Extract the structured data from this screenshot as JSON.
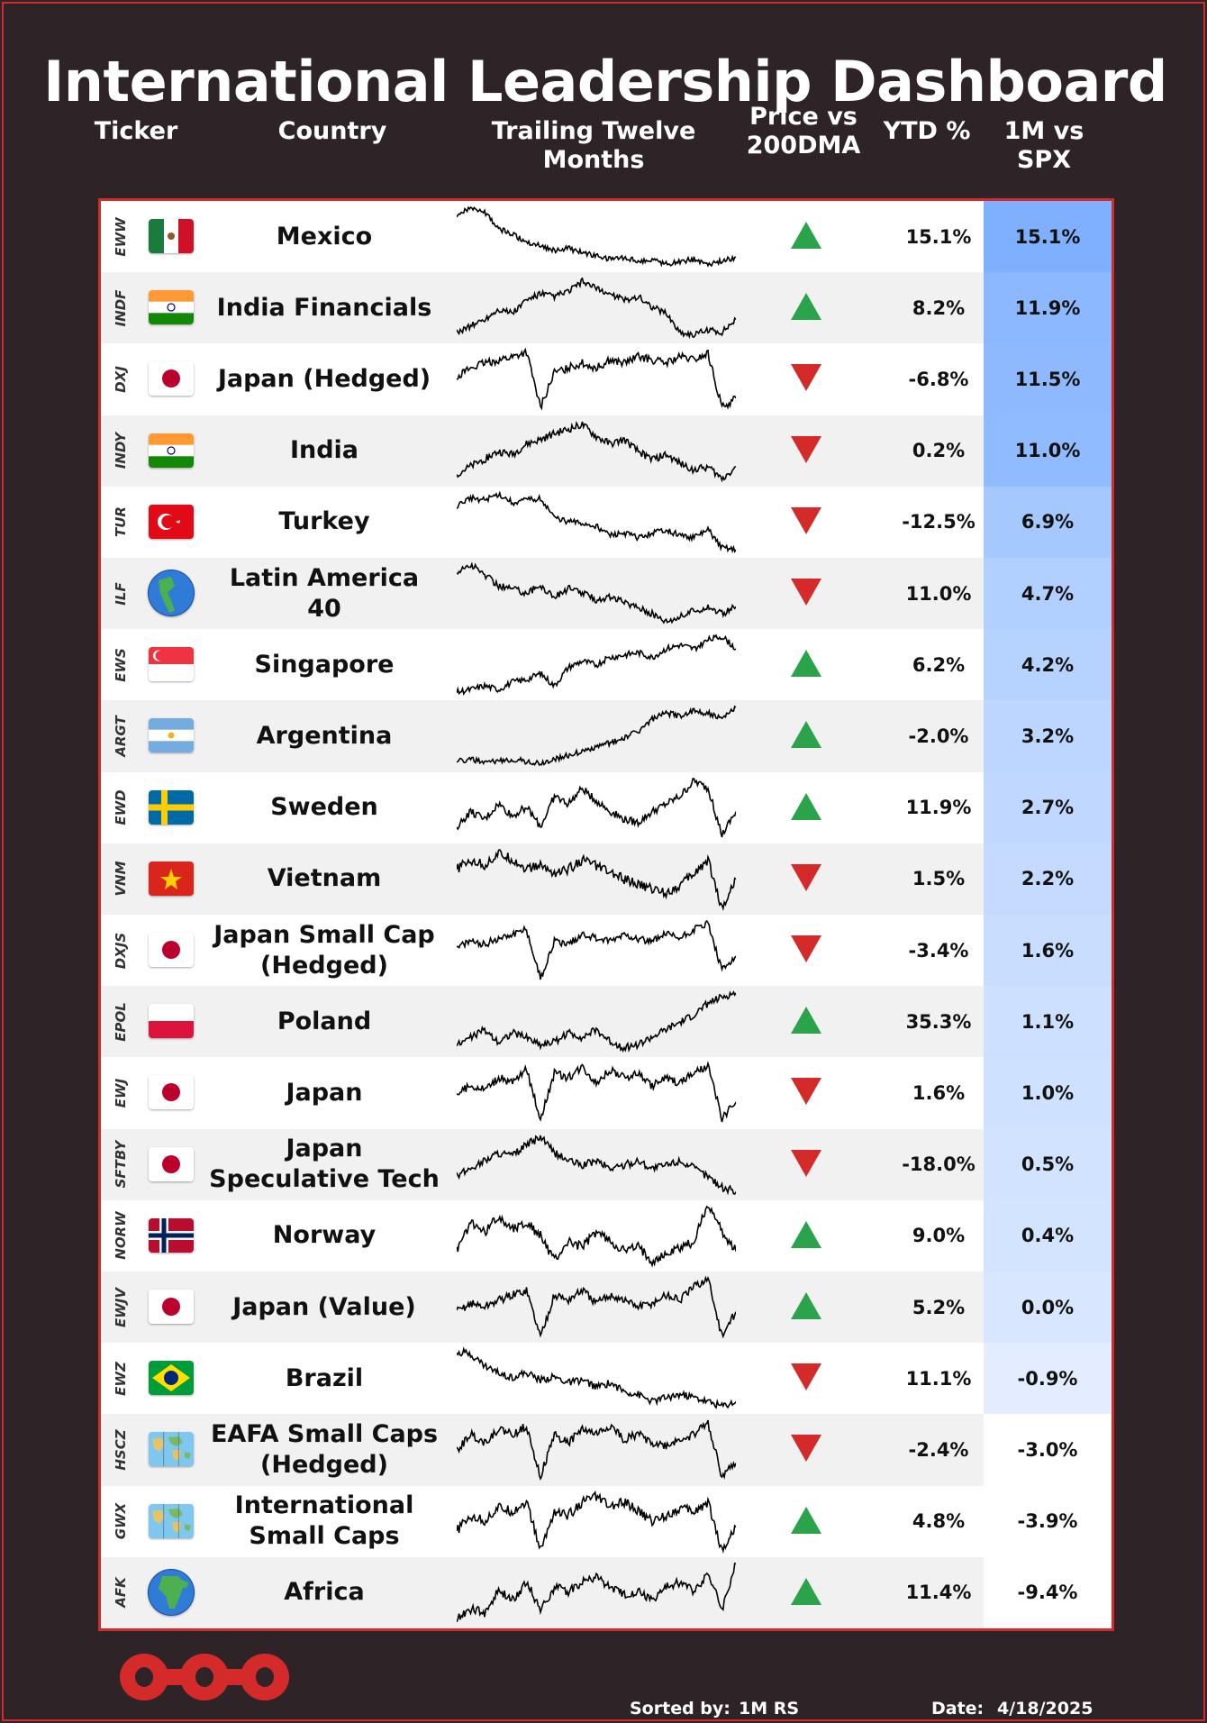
{
  "title": "International Leadership Dashboard",
  "headers": {
    "ticker": "Ticker",
    "country": "Country",
    "ttm": "Trailing Twelve Months",
    "price_line1": "Price vs",
    "price_line2": "200DMA",
    "ytd": "YTD %",
    "rs": "1M vs SPX"
  },
  "colors": {
    "up": "#2aa34a",
    "down": "#d42a2a",
    "rs_max": "#7fb0ff",
    "border": "#d22b2b",
    "background": "#2e2428"
  },
  "rows": [
    {
      "ticker": "EWW",
      "country": "Mexico",
      "flag": "mexico",
      "trend": "up",
      "ytd": "15.1%",
      "rs": "15.1%",
      "rs_value": 15.1,
      "spark": [
        60,
        70,
        65,
        50,
        45,
        38,
        35,
        30,
        32,
        28,
        25,
        22,
        24,
        20,
        22,
        18,
        20,
        22,
        18,
        20,
        24
      ]
    },
    {
      "ticker": "INDF",
      "country": "India Financials",
      "flag": "india",
      "trend": "up",
      "ytd": "8.2%",
      "rs": "11.9%",
      "rs_value": 11.9,
      "spark": [
        30,
        35,
        40,
        48,
        45,
        55,
        60,
        58,
        62,
        70,
        64,
        60,
        55,
        58,
        50,
        45,
        30,
        28,
        32,
        30,
        40
      ]
    },
    {
      "ticker": "DXJ",
      "country": "Japan (Hedged)",
      "flag": "japan",
      "trend": "down",
      "ytd": "-6.8%",
      "rs": "11.5%",
      "rs_value": 11.5,
      "spark": [
        50,
        55,
        58,
        60,
        62,
        65,
        30,
        52,
        55,
        58,
        55,
        60,
        58,
        62,
        60,
        58,
        62,
        60,
        64,
        30,
        36
      ]
    },
    {
      "ticker": "INDY",
      "country": "India",
      "flag": "india",
      "trend": "down",
      "ytd": "0.2%",
      "rs": "11.0%",
      "rs_value": 11.0,
      "spark": [
        35,
        40,
        45,
        50,
        48,
        55,
        58,
        62,
        65,
        68,
        60,
        55,
        58,
        50,
        45,
        48,
        42,
        38,
        40,
        32,
        40
      ]
    },
    {
      "ticker": "TUR",
      "country": "Turkey",
      "flag": "turkey",
      "trend": "down",
      "ytd": "-12.5%",
      "rs": "6.9%",
      "rs_value": 6.9,
      "spark": [
        55,
        62,
        60,
        65,
        58,
        60,
        62,
        45,
        42,
        40,
        38,
        30,
        32,
        28,
        32,
        35,
        30,
        28,
        35,
        20,
        18
      ]
    },
    {
      "ticker": "ILF",
      "country": "Latin America 40",
      "flag": "globe-americas",
      "trend": "down",
      "ytd": "11.0%",
      "rs": "4.7%",
      "rs_value": 4.7,
      "spark": [
        60,
        65,
        58,
        50,
        48,
        45,
        50,
        42,
        48,
        45,
        40,
        42,
        38,
        35,
        30,
        25,
        28,
        32,
        35,
        30,
        35
      ]
    },
    {
      "ticker": "EWS",
      "country": "Singapore",
      "flag": "singapore",
      "trend": "up",
      "ytd": "6.2%",
      "rs": "4.2%",
      "rs_value": 4.2,
      "spark": [
        20,
        22,
        25,
        22,
        28,
        30,
        35,
        25,
        40,
        45,
        42,
        48,
        50,
        52,
        48,
        55,
        58,
        55,
        62,
        65,
        55
      ]
    },
    {
      "ticker": "ARGT",
      "country": "Argentina",
      "flag": "argentina",
      "trend": "up",
      "ytd": "-2.0%",
      "rs": "3.2%",
      "rs_value": 3.2,
      "spark": [
        20,
        22,
        18,
        20,
        22,
        20,
        18,
        22,
        25,
        28,
        32,
        35,
        40,
        45,
        55,
        60,
        58,
        62,
        60,
        55,
        65
      ]
    },
    {
      "ticker": "EWD",
      "country": "Sweden",
      "flag": "sweden",
      "trend": "up",
      "ytd": "11.9%",
      "rs": "2.7%",
      "rs_value": 2.7,
      "spark": [
        35,
        45,
        40,
        50,
        42,
        48,
        35,
        55,
        50,
        60,
        52,
        45,
        40,
        38,
        45,
        50,
        55,
        65,
        60,
        30,
        45
      ]
    },
    {
      "ticker": "VNM",
      "country": "Vietnam",
      "flag": "vietnam",
      "trend": "down",
      "ytd": "1.5%",
      "rs": "2.2%",
      "rs_value": 2.2,
      "spark": [
        50,
        55,
        52,
        58,
        55,
        50,
        52,
        48,
        50,
        55,
        52,
        48,
        45,
        42,
        40,
        38,
        42,
        48,
        55,
        30,
        45
      ]
    },
    {
      "ticker": "DXJS",
      "country": "Japan Small Cap (Hedged)",
      "flag": "japan",
      "trend": "down",
      "ytd": "-3.4%",
      "rs": "1.6%",
      "rs_value": 1.6,
      "spark": [
        45,
        50,
        48,
        52,
        55,
        58,
        25,
        50,
        48,
        55,
        52,
        50,
        55,
        52,
        50,
        55,
        52,
        58,
        62,
        30,
        40
      ]
    },
    {
      "ticker": "EPOL",
      "country": "Poland",
      "flag": "poland",
      "trend": "up",
      "ytd": "35.3%",
      "rs": "1.1%",
      "rs_value": 1.1,
      "spark": [
        30,
        35,
        40,
        32,
        38,
        35,
        30,
        32,
        38,
        35,
        40,
        32,
        28,
        30,
        35,
        40,
        45,
        50,
        58,
        62,
        65
      ]
    },
    {
      "ticker": "EWJ",
      "country": "Japan",
      "flag": "japan",
      "trend": "down",
      "ytd": "1.6%",
      "rs": "1.0%",
      "rs_value": 1.0,
      "spark": [
        45,
        50,
        48,
        55,
        52,
        60,
        30,
        58,
        55,
        62,
        52,
        60,
        55,
        58,
        50,
        55,
        52,
        58,
        62,
        30,
        40
      ]
    },
    {
      "ticker": "SFTBY",
      "country": "Japan Speculative Tech",
      "flag": "japan",
      "trend": "down",
      "ytd": "-18.0%",
      "rs": "0.5%",
      "rs_value": 0.5,
      "spark": [
        35,
        40,
        45,
        50,
        48,
        55,
        60,
        50,
        45,
        42,
        45,
        40,
        42,
        45,
        40,
        42,
        45,
        40,
        35,
        28,
        25
      ]
    },
    {
      "ticker": "NORW",
      "country": "Norway",
      "flag": "norway",
      "trend": "up",
      "ytd": "9.0%",
      "rs": "0.4%",
      "rs_value": 0.4,
      "spark": [
        40,
        55,
        50,
        58,
        52,
        55,
        48,
        35,
        45,
        42,
        50,
        45,
        40,
        42,
        35,
        38,
        42,
        45,
        65,
        50,
        40
      ]
    },
    {
      "ticker": "EWJV",
      "country": "Japan (Value)",
      "flag": "japan",
      "trend": "up",
      "ytd": "5.2%",
      "rs": "0.0%",
      "rs_value": 0.0,
      "spark": [
        45,
        50,
        48,
        52,
        55,
        58,
        30,
        55,
        52,
        58,
        50,
        55,
        52,
        48,
        50,
        55,
        52,
        60,
        65,
        30,
        45
      ]
    },
    {
      "ticker": "EWZ",
      "country": "Brazil",
      "flag": "brazil",
      "trend": "down",
      "ytd": "11.1%",
      "rs": "-0.9%",
      "rs_value": -0.9,
      "spark": [
        60,
        58,
        50,
        45,
        42,
        45,
        40,
        42,
        38,
        40,
        35,
        38,
        32,
        30,
        25,
        28,
        30,
        28,
        25,
        22,
        25
      ]
    },
    {
      "ticker": "HSCZ",
      "country": "EAFA Small Caps (Hedged)",
      "flag": "map",
      "trend": "down",
      "ytd": "-2.4%",
      "rs": "-3.0%",
      "rs_value": -3.0,
      "spark": [
        45,
        55,
        50,
        58,
        55,
        60,
        30,
        55,
        50,
        58,
        55,
        60,
        52,
        55,
        50,
        48,
        52,
        55,
        62,
        30,
        38
      ]
    },
    {
      "ticker": "GWX",
      "country": "International Small Caps",
      "flag": "map",
      "trend": "up",
      "ytd": "4.8%",
      "rs": "-3.9%",
      "rs_value": -3.9,
      "spark": [
        40,
        48,
        45,
        52,
        50,
        55,
        30,
        50,
        48,
        55,
        58,
        52,
        55,
        50,
        45,
        48,
        52,
        50,
        55,
        30,
        42
      ]
    },
    {
      "ticker": "AFK",
      "country": "Africa",
      "flag": "globe-africa",
      "trend": "up",
      "ytd": "11.4%",
      "rs": "-9.4%",
      "rs_value": -9.4,
      "spark": [
        25,
        30,
        28,
        40,
        35,
        45,
        30,
        42,
        40,
        45,
        48,
        42,
        38,
        40,
        35,
        42,
        45,
        40,
        50,
        30,
        55
      ]
    }
  ],
  "footer": {
    "sorted_label": "Sorted by:",
    "sorted_value": "1M RS",
    "date_label": "Date:",
    "date_value": "4/18/2025"
  }
}
